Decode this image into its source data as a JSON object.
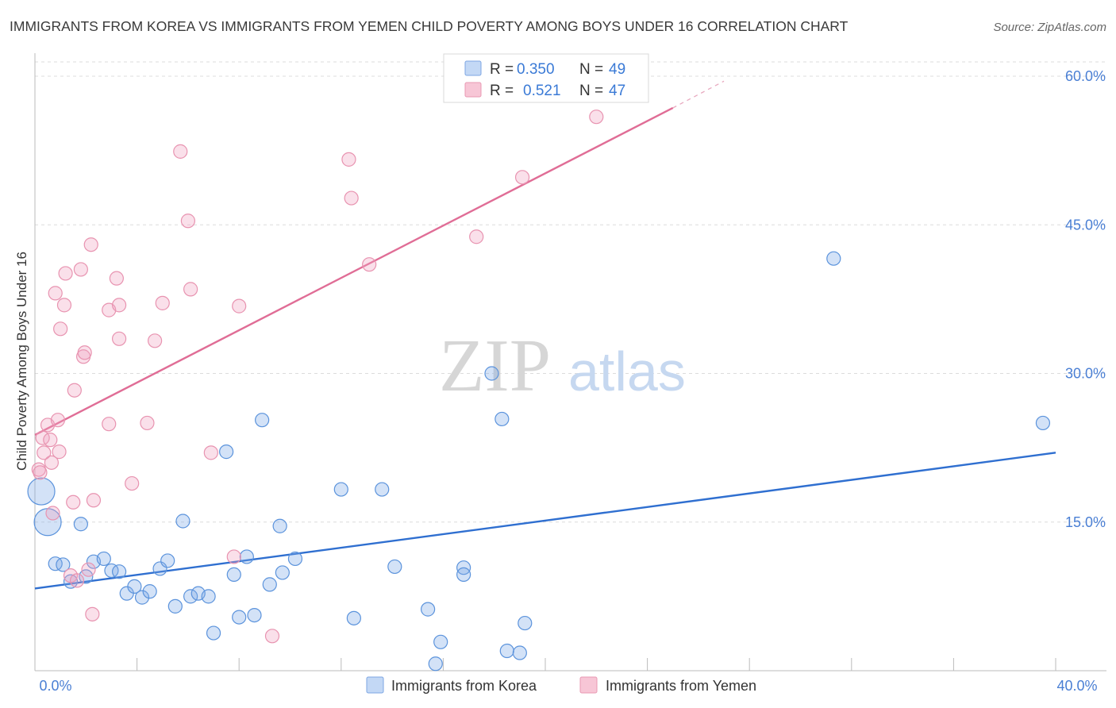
{
  "colors": {
    "korea": "#4a86d8",
    "yemen": "#e88aa8",
    "korea_line": "#2f6fd0",
    "yemen_line": "#e06d96",
    "grid": "#dcdcdc",
    "tick_label": "#4a7fd4",
    "title": "#3a3a3a"
  },
  "chart_data": {
    "type": "scatter",
    "title": "IMMIGRANTS FROM KOREA VS IMMIGRANTS FROM YEMEN CHILD POVERTY AMONG BOYS UNDER 16 CORRELATION CHART",
    "source": "Source: ZipAtlas.com",
    "xlabel": "",
    "ylabel": "Child Poverty Among Boys Under 16",
    "xlim": [
      0,
      40
    ],
    "ylim": [
      0,
      60
    ],
    "x_tick_labels": {
      "min": "0.0%",
      "max": "40.0%"
    },
    "y_ticks": [
      {
        "value": 15,
        "label": "15.0%"
      },
      {
        "value": 30,
        "label": "30.0%"
      },
      {
        "value": 45,
        "label": "45.0%"
      },
      {
        "value": 60,
        "label": "60.0%"
      }
    ],
    "grid": true,
    "watermark": {
      "zip": "ZIP",
      "atlas": "atlas"
    },
    "legend": {
      "position": "top-center",
      "rows": [
        {
          "r_label": "R =",
          "r_value": "0.350",
          "n_label": "N =",
          "n_value": "49"
        },
        {
          "r_label": "R =",
          "r_value": "0.521",
          "n_label": "N =",
          "n_value": "47"
        }
      ]
    },
    "bottom_legend": [
      "Immigrants from Korea",
      "Immigrants from Yemen"
    ],
    "series": [
      {
        "name": "Immigrants from Korea",
        "color": "#4a86d8",
        "trend": {
          "x0": 0,
          "y0": 8.3,
          "x1": 40,
          "y1": 22.0
        },
        "points": [
          {
            "x": 0.25,
            "y": 18.1,
            "big": true
          },
          {
            "x": 0.5,
            "y": 15.0,
            "big": true
          },
          {
            "x": 0.8,
            "y": 10.8
          },
          {
            "x": 1.1,
            "y": 10.7
          },
          {
            "x": 1.4,
            "y": 9.0
          },
          {
            "x": 1.8,
            "y": 14.8
          },
          {
            "x": 2.0,
            "y": 9.5
          },
          {
            "x": 2.3,
            "y": 11.0
          },
          {
            "x": 2.7,
            "y": 11.3
          },
          {
            "x": 3.0,
            "y": 10.1
          },
          {
            "x": 3.3,
            "y": 10.0
          },
          {
            "x": 3.6,
            "y": 7.8
          },
          {
            "x": 3.9,
            "y": 8.5
          },
          {
            "x": 4.2,
            "y": 7.4
          },
          {
            "x": 4.5,
            "y": 8.0
          },
          {
            "x": 4.9,
            "y": 10.3
          },
          {
            "x": 5.2,
            "y": 11.1
          },
          {
            "x": 5.5,
            "y": 6.5
          },
          {
            "x": 5.8,
            "y": 15.1
          },
          {
            "x": 6.1,
            "y": 7.5
          },
          {
            "x": 6.4,
            "y": 7.8
          },
          {
            "x": 6.8,
            "y": 7.5
          },
          {
            "x": 7.0,
            "y": 3.8
          },
          {
            "x": 7.5,
            "y": 22.1
          },
          {
            "x": 7.8,
            "y": 9.7
          },
          {
            "x": 8.0,
            "y": 5.4
          },
          {
            "x": 8.3,
            "y": 11.5
          },
          {
            "x": 8.6,
            "y": 5.6
          },
          {
            "x": 8.9,
            "y": 25.3
          },
          {
            "x": 9.2,
            "y": 8.7
          },
          {
            "x": 9.6,
            "y": 14.6
          },
          {
            "x": 9.7,
            "y": 9.9
          },
          {
            "x": 10.2,
            "y": 11.3
          },
          {
            "x": 12.0,
            "y": 18.3
          },
          {
            "x": 12.5,
            "y": 5.3
          },
          {
            "x": 13.6,
            "y": 18.3
          },
          {
            "x": 14.1,
            "y": 10.5
          },
          {
            "x": 15.4,
            "y": 6.2
          },
          {
            "x": 15.9,
            "y": 2.9
          },
          {
            "x": 15.7,
            "y": 0.7
          },
          {
            "x": 16.8,
            "y": 10.4
          },
          {
            "x": 16.8,
            "y": 9.7
          },
          {
            "x": 17.9,
            "y": 30.0
          },
          {
            "x": 18.3,
            "y": 25.4
          },
          {
            "x": 18.5,
            "y": 2.0
          },
          {
            "x": 19.0,
            "y": 1.8
          },
          {
            "x": 19.2,
            "y": 4.8
          },
          {
            "x": 31.3,
            "y": 41.6
          },
          {
            "x": 39.5,
            "y": 25.0
          }
        ]
      },
      {
        "name": "Immigrants from Yemen",
        "color": "#e88aa8",
        "trend": {
          "x0": 0,
          "y0": 23.8,
          "x1": 25.0,
          "y1": 56.8,
          "dash_x1": 27.0,
          "dash_y1": 59.5
        },
        "points": [
          {
            "x": 0.15,
            "y": 20.3
          },
          {
            "x": 0.2,
            "y": 20.0
          },
          {
            "x": 0.3,
            "y": 23.5
          },
          {
            "x": 0.35,
            "y": 22.0
          },
          {
            "x": 0.5,
            "y": 24.8
          },
          {
            "x": 0.6,
            "y": 23.3
          },
          {
            "x": 0.65,
            "y": 21.0
          },
          {
            "x": 0.7,
            "y": 15.9
          },
          {
            "x": 0.8,
            "y": 38.1
          },
          {
            "x": 0.9,
            "y": 25.3
          },
          {
            "x": 0.95,
            "y": 22.1
          },
          {
            "x": 1.0,
            "y": 34.5
          },
          {
            "x": 1.15,
            "y": 36.9
          },
          {
            "x": 1.2,
            "y": 40.1
          },
          {
            "x": 1.4,
            "y": 9.6
          },
          {
            "x": 1.5,
            "y": 17.0
          },
          {
            "x": 1.55,
            "y": 28.3
          },
          {
            "x": 1.65,
            "y": 9.1
          },
          {
            "x": 1.8,
            "y": 40.5
          },
          {
            "x": 1.9,
            "y": 31.7
          },
          {
            "x": 1.95,
            "y": 32.1
          },
          {
            "x": 2.1,
            "y": 10.2
          },
          {
            "x": 2.2,
            "y": 43.0
          },
          {
            "x": 2.25,
            "y": 5.7
          },
          {
            "x": 2.3,
            "y": 17.2
          },
          {
            "x": 2.9,
            "y": 24.9
          },
          {
            "x": 2.9,
            "y": 36.4
          },
          {
            "x": 3.2,
            "y": 39.6
          },
          {
            "x": 3.3,
            "y": 33.5
          },
          {
            "x": 3.3,
            "y": 36.9
          },
          {
            "x": 3.8,
            "y": 18.9
          },
          {
            "x": 4.4,
            "y": 25.0
          },
          {
            "x": 4.7,
            "y": 33.3
          },
          {
            "x": 5.0,
            "y": 37.1
          },
          {
            "x": 5.7,
            "y": 52.4
          },
          {
            "x": 6.0,
            "y": 45.4
          },
          {
            "x": 6.1,
            "y": 38.5
          },
          {
            "x": 6.9,
            "y": 22.0
          },
          {
            "x": 7.8,
            "y": 11.5
          },
          {
            "x": 8.0,
            "y": 36.8
          },
          {
            "x": 9.3,
            "y": 3.5
          },
          {
            "x": 12.3,
            "y": 51.6
          },
          {
            "x": 12.4,
            "y": 47.7
          },
          {
            "x": 13.1,
            "y": 41.0
          },
          {
            "x": 17.3,
            "y": 43.8
          },
          {
            "x": 19.1,
            "y": 49.8
          },
          {
            "x": 22.0,
            "y": 55.9
          }
        ]
      }
    ]
  }
}
